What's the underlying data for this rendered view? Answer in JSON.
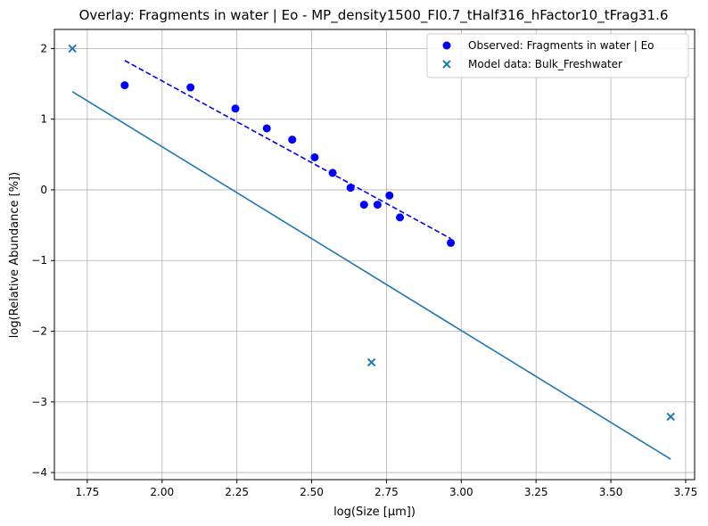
{
  "chart_data": {
    "type": "scatter",
    "title": "Overlay: Fragments in water | Eo - MP_density1500_FI0.7_tHalf316_hFactor10_tFrag31.6",
    "xlabel": "log(Size [µm])",
    "ylabel": "log(Relative Abundance [%])",
    "xlim": [
      1.64,
      3.78
    ],
    "ylim": [
      -4.1,
      2.27
    ],
    "xticks": [
      1.75,
      2.0,
      2.25,
      2.5,
      2.75,
      3.0,
      3.25,
      3.5,
      3.75
    ],
    "xtick_labels": [
      "1.75",
      "2.00",
      "2.25",
      "2.50",
      "2.75",
      "3.00",
      "3.25",
      "3.50",
      "3.75"
    ],
    "yticks": [
      -4,
      -3,
      -2,
      -1,
      0,
      1,
      2
    ],
    "ytick_labels": [
      "−4",
      "−3",
      "−2",
      "−1",
      "0",
      "1",
      "2"
    ],
    "grid": true,
    "legend_position": "top-right",
    "colors": {
      "observed": "#0000ff",
      "model": "#1f77b4",
      "grid": "#b0b0b0"
    },
    "series": [
      {
        "name": "Observed: Fragments in water | Eo",
        "kind": "scatter",
        "marker": "circle",
        "color": "#0000ff",
        "points": [
          {
            "x": 1.875,
            "y": 1.48
          },
          {
            "x": 2.095,
            "y": 1.45
          },
          {
            "x": 2.245,
            "y": 1.15
          },
          {
            "x": 2.35,
            "y": 0.87
          },
          {
            "x": 2.435,
            "y": 0.71
          },
          {
            "x": 2.51,
            "y": 0.46
          },
          {
            "x": 2.57,
            "y": 0.24
          },
          {
            "x": 2.63,
            "y": 0.03
          },
          {
            "x": 2.675,
            "y": -0.21
          },
          {
            "x": 2.72,
            "y": -0.21
          },
          {
            "x": 2.76,
            "y": -0.08
          },
          {
            "x": 2.795,
            "y": -0.39
          },
          {
            "x": 2.965,
            "y": -0.75
          }
        ]
      },
      {
        "kind": "line",
        "style": "dashed",
        "color": "#0000ff",
        "points": [
          {
            "x": 1.875,
            "y": 1.83
          },
          {
            "x": 2.965,
            "y": -0.69
          }
        ]
      },
      {
        "name": "Model data: Bulk_Freshwater",
        "kind": "scatter",
        "marker": "x",
        "color": "#1f77b4",
        "points": [
          {
            "x": 1.7,
            "y": 2.0
          },
          {
            "x": 2.7,
            "y": -2.44
          },
          {
            "x": 3.7,
            "y": -3.21
          }
        ]
      },
      {
        "kind": "line",
        "style": "solid",
        "color": "#1f77b4",
        "points": [
          {
            "x": 1.7,
            "y": 1.39
          },
          {
            "x": 3.7,
            "y": -3.81
          }
        ]
      }
    ]
  }
}
